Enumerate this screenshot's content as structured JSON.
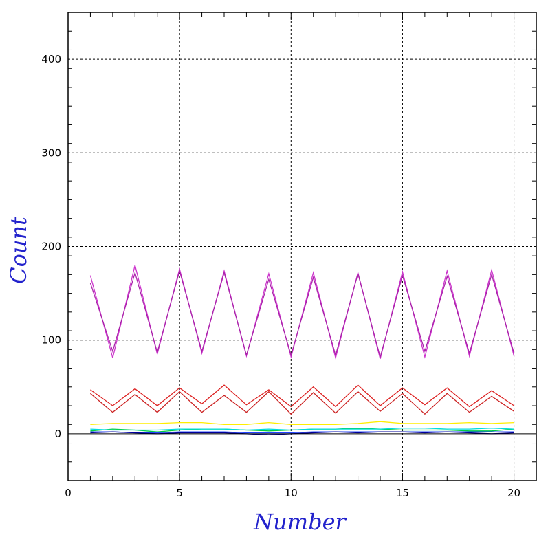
{
  "chart_data": {
    "type": "line",
    "title": "",
    "xlabel": "Number",
    "ylabel": "Count",
    "xlim": [
      0,
      21
    ],
    "ylim": [
      -50,
      450
    ],
    "grid": true,
    "x_ticks": [
      0,
      5,
      10,
      15,
      20
    ],
    "x_tick_labels": [
      "0",
      "5",
      "10",
      "15",
      "20"
    ],
    "y_ticks": [
      0,
      100,
      200,
      300,
      400
    ],
    "y_tick_labels": [
      "0",
      "100",
      "200",
      "300",
      "400"
    ],
    "colors": {
      "axis_title": "#2222cc",
      "frame": "#000000",
      "grid": "#000000"
    },
    "x": [
      1,
      2,
      3,
      4,
      5,
      6,
      7,
      8,
      9,
      10,
      11,
      12,
      13,
      14,
      15,
      16,
      17,
      18,
      19,
      20
    ],
    "series": [
      {
        "color": "#cc33cc",
        "values": [
          169,
          81,
          180,
          85,
          176,
          86,
          174,
          83,
          171,
          82,
          172,
          81,
          172,
          80,
          173,
          82,
          174,
          83,
          175,
          83
        ]
      },
      {
        "color": "#aa22aa",
        "values": [
          161,
          88,
          172,
          87,
          174,
          88,
          172,
          84,
          165,
          84,
          167,
          84,
          171,
          82,
          169,
          88,
          168,
          86,
          170,
          86
        ]
      },
      {
        "color": "#dd2222",
        "values": [
          47,
          30,
          48,
          30,
          49,
          32,
          52,
          31,
          47,
          29,
          50,
          29,
          52,
          30,
          49,
          31,
          49,
          29,
          46,
          30
        ]
      },
      {
        "color": "#cc2222",
        "values": [
          43,
          23,
          42,
          23,
          45,
          23,
          41,
          23,
          45,
          21,
          44,
          22,
          45,
          24,
          43,
          21,
          43,
          23,
          40,
          24
        ]
      },
      {
        "color": "#ffee00",
        "values": [
          10,
          11,
          11,
          11,
          12,
          12,
          10,
          10,
          12,
          10,
          10,
          10,
          11,
          13,
          11,
          11,
          11,
          12,
          11,
          12
        ]
      },
      {
        "color": "#00cc44",
        "values": [
          3,
          5,
          4,
          2,
          4,
          5,
          5,
          4,
          3,
          4,
          5,
          5,
          6,
          5,
          4,
          4,
          4,
          3,
          3,
          5
        ]
      },
      {
        "color": "#00dddd",
        "values": [
          5,
          4,
          4,
          4,
          5,
          5,
          5,
          4,
          5,
          4,
          5,
          5,
          5,
          5,
          6,
          6,
          5,
          5,
          6,
          5
        ]
      },
      {
        "color": "#2244ff",
        "values": [
          2,
          2,
          1,
          1,
          2,
          2,
          2,
          1,
          1,
          1,
          2,
          2,
          2,
          2,
          2,
          2,
          2,
          2,
          2,
          2
        ]
      },
      {
        "color": "#000099",
        "values": [
          1,
          2,
          1,
          0,
          1,
          1,
          1,
          0,
          -1,
          0,
          1,
          2,
          1,
          2,
          2,
          1,
          2,
          1,
          0,
          1
        ]
      }
    ]
  }
}
